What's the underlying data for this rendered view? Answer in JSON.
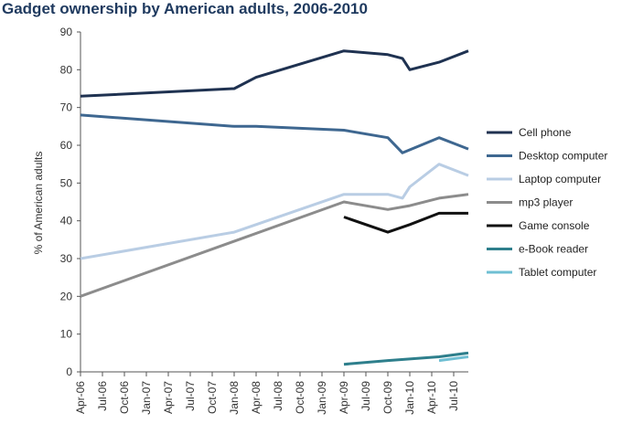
{
  "chart_data": {
    "type": "line",
    "title": "Gadget ownership by American adults, 2006-2010",
    "ylabel": "% of American adults",
    "xlabel": "",
    "ylim": [
      0,
      90
    ],
    "yticks": [
      0,
      10,
      20,
      30,
      40,
      50,
      60,
      70,
      80,
      90
    ],
    "grid": false,
    "legend_position": "right",
    "x_tick_labels": [
      "Apr-06",
      "Jul-06",
      "Oct-06",
      "Jan-07",
      "Apr-07",
      "Jul-07",
      "Oct-07",
      "Jan-08",
      "Apr-08",
      "Jul-08",
      "Oct-08",
      "Jan-09",
      "Apr-09",
      "Jul-09",
      "Oct-09",
      "Jan-10",
      "Apr-10",
      "Jul-10"
    ],
    "series": [
      {
        "name": "Cell phone",
        "color": "#1f3251",
        "points": [
          [
            "Apr-06",
            73
          ],
          [
            "Jan-08",
            75
          ],
          [
            "Apr-08",
            78
          ],
          [
            "Apr-09",
            85
          ],
          [
            "Oct-09",
            84
          ],
          [
            "Dec-09",
            83
          ],
          [
            "Jan-10",
            80
          ],
          [
            "May-10",
            82
          ],
          [
            "Sep-10",
            85
          ]
        ]
      },
      {
        "name": "Desktop computer",
        "color": "#3e6790",
        "points": [
          [
            "Apr-06",
            68
          ],
          [
            "Jan-08",
            65
          ],
          [
            "Apr-08",
            65
          ],
          [
            "Apr-09",
            64
          ],
          [
            "Oct-09",
            62
          ],
          [
            "Dec-09",
            58
          ],
          [
            "May-10",
            62
          ],
          [
            "Sep-10",
            59
          ]
        ]
      },
      {
        "name": "Laptop computer",
        "color": "#b9cde4",
        "points": [
          [
            "Apr-06",
            30
          ],
          [
            "Jan-08",
            37
          ],
          [
            "Apr-09",
            47
          ],
          [
            "Oct-09",
            47
          ],
          [
            "Dec-09",
            46
          ],
          [
            "Jan-10",
            49
          ],
          [
            "May-10",
            55
          ],
          [
            "Sep-10",
            52
          ]
        ]
      },
      {
        "name": "mp3 player",
        "color": "#8c8c8c",
        "points": [
          [
            "Apr-06",
            20
          ],
          [
            "Apr-09",
            45
          ],
          [
            "Oct-09",
            43
          ],
          [
            "Jan-10",
            44
          ],
          [
            "May-10",
            46
          ],
          [
            "Sep-10",
            47
          ]
        ]
      },
      {
        "name": "Game console",
        "color": "#111111",
        "points": [
          [
            "Apr-09",
            41
          ],
          [
            "Oct-09",
            37
          ],
          [
            "Jan-10",
            39
          ],
          [
            "May-10",
            42
          ],
          [
            "Sep-10",
            42
          ]
        ]
      },
      {
        "name": "e-Book reader",
        "color": "#2e7f8c",
        "points": [
          [
            "Apr-09",
            2
          ],
          [
            "Oct-09",
            3
          ],
          [
            "May-10",
            4
          ],
          [
            "Sep-10",
            5
          ]
        ]
      },
      {
        "name": "Tablet computer",
        "color": "#6fbfd3",
        "points": [
          [
            "May-10",
            3
          ],
          [
            "Sep-10",
            4
          ]
        ]
      }
    ]
  }
}
